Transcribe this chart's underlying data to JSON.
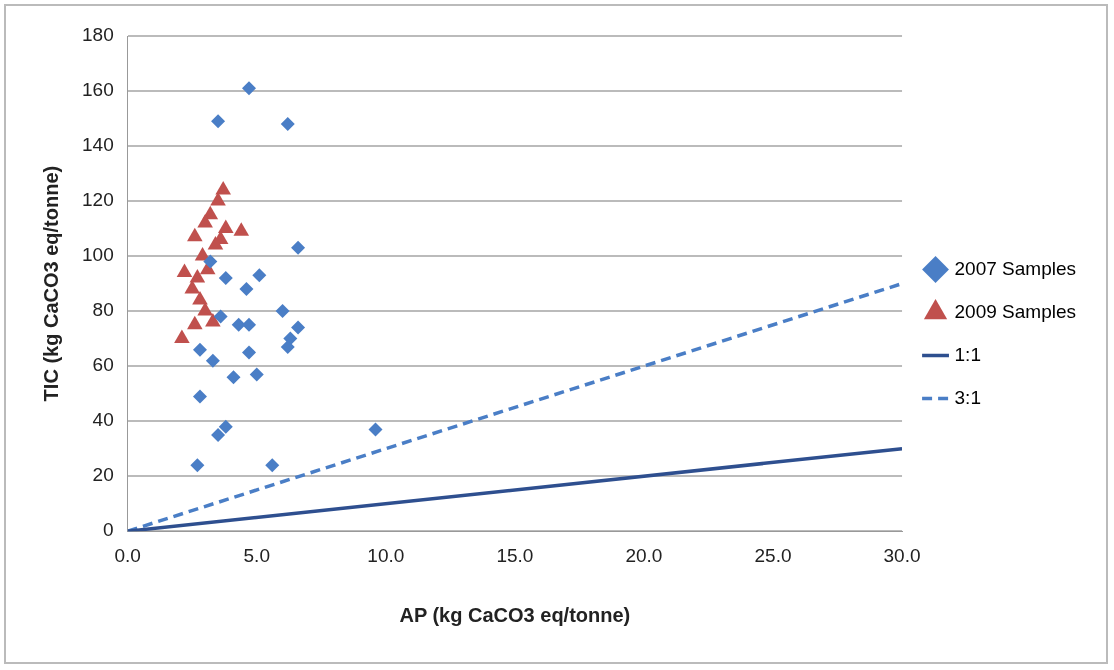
{
  "chart_data": {
    "type": "scatter",
    "xlabel": "AP (kg CaCO3 eq/tonne)",
    "ylabel": "TIC (kg CaCO3 eq/tonne)",
    "xlim": [
      0,
      30
    ],
    "xticks": [
      {
        "value": 0,
        "label": "0.0"
      },
      {
        "value": 5,
        "label": "5.0"
      },
      {
        "value": 10,
        "label": "10.0"
      },
      {
        "value": 15,
        "label": "15.0"
      },
      {
        "value": 20,
        "label": "20.0"
      },
      {
        "value": 25,
        "label": "25.0"
      },
      {
        "value": 30,
        "label": "30.0"
      }
    ],
    "ylim": [
      0,
      180
    ],
    "yticks": [
      0,
      20,
      40,
      60,
      80,
      100,
      120,
      140,
      160,
      180
    ],
    "grid": "y",
    "legend": "right",
    "series": [
      {
        "name": "2007 Samples",
        "color": "#4a7ec6",
        "marker": "diamond",
        "x": [
          4.7,
          3.5,
          6.2,
          6.6,
          3.2,
          3.8,
          5.1,
          4.6,
          6.0,
          3.6,
          4.3,
          4.7,
          6.6,
          6.3,
          6.2,
          2.8,
          3.3,
          4.7,
          5.0,
          4.1,
          2.8,
          3.8,
          3.5,
          2.7,
          5.6,
          9.6
        ],
        "values": [
          161,
          149,
          148,
          103,
          98,
          92,
          93,
          88,
          80,
          78,
          75,
          75,
          74,
          70,
          67,
          66,
          62,
          65,
          57,
          56,
          49,
          38,
          35,
          24,
          24,
          37
        ]
      },
      {
        "name": "2009 Samples",
        "color": "#c0504d",
        "marker": "triangle",
        "x": [
          3.7,
          3.5,
          3.2,
          3.0,
          2.6,
          3.8,
          4.4,
          3.4,
          2.2,
          2.7,
          3.1,
          2.5,
          2.8,
          3.0,
          2.1,
          2.6,
          3.3,
          2.9,
          3.6
        ],
        "values": [
          124,
          120,
          115,
          112,
          107,
          110,
          109,
          104,
          94,
          92,
          95,
          88,
          84,
          80,
          70,
          75,
          76,
          100,
          106
        ]
      },
      {
        "name": "1:1",
        "type": "line",
        "color": "#2e4f8f",
        "marker": "none",
        "line_style": "solid",
        "x": [
          0,
          30
        ],
        "values": [
          0,
          30
        ]
      },
      {
        "name": "3:1",
        "type": "line",
        "color": "#4a7ec6",
        "marker": "none",
        "line_style": "dashed",
        "x": [
          0,
          30
        ],
        "values": [
          0,
          90
        ]
      }
    ]
  }
}
